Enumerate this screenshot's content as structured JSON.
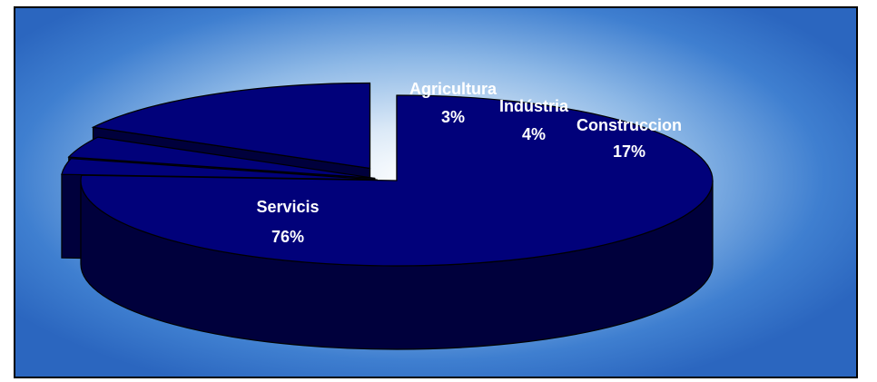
{
  "chart_data": {
    "type": "pie",
    "three_d": true,
    "exploded": true,
    "categories": [
      "Servicis",
      "Agricultura",
      "Indústria",
      "Construccion"
    ],
    "values": [
      76,
      3,
      4,
      17
    ],
    "labels": {
      "names": [
        "Servicis",
        "Agricultura",
        "Indústria",
        "Construccion"
      ],
      "percents": [
        "76%",
        "3%",
        "4%",
        "17%"
      ]
    },
    "title": "",
    "legend": "none"
  },
  "colors": {
    "slice_top": "#01017a",
    "slice_side": "#00003c",
    "slice_stroke": "#000000",
    "label_text": "#ffffff"
  }
}
